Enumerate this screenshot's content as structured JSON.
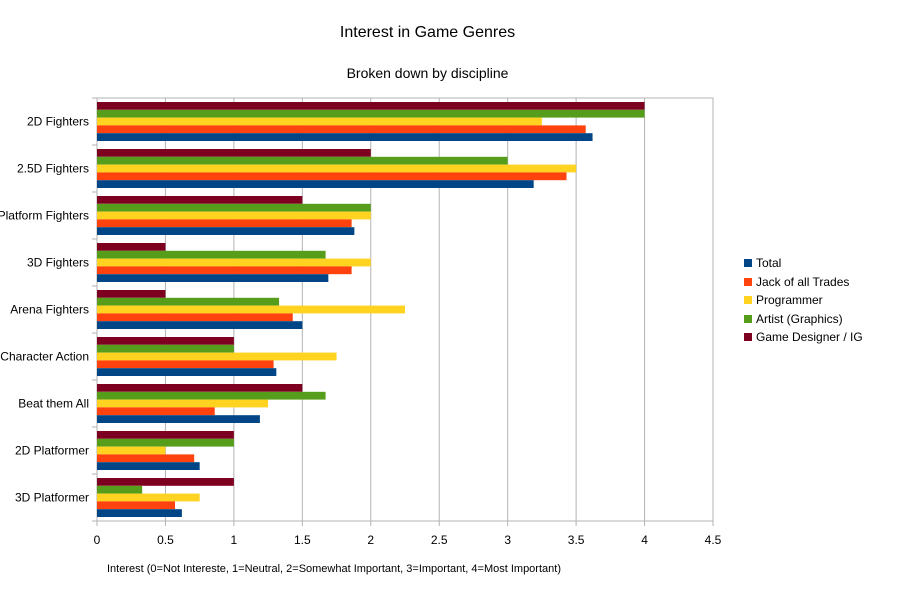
{
  "chart_data": {
    "type": "bar",
    "orientation": "horizontal",
    "title": "Interest in Game Genres",
    "subtitle": "Broken down by discipline",
    "xlabel": "Interest (0=Not Intereste, 1=Neutral, 2=Somewhat Important, 3=Important, 4=Most Important)",
    "ylabel": "",
    "xlim": [
      0,
      4.5
    ],
    "xticks": [
      "0",
      "0.5",
      "1",
      "1.5",
      "2",
      "2.5",
      "3",
      "3.5",
      "4",
      "4.5"
    ],
    "grid": true,
    "legend_position": "right",
    "categories": [
      "2D Fighters",
      "2.5D Fighters",
      "Platform Fighters",
      "3D Fighters",
      "Arena Fighters",
      "Character Action",
      "Beat them All",
      "2D Platformer",
      "3D Platformer"
    ],
    "series": [
      {
        "name": "Game Designer / IG",
        "color": "#7e0021",
        "values": [
          4,
          2,
          1.5,
          0.5,
          0.5,
          1,
          1.5,
          1,
          1
        ]
      },
      {
        "name": "Artist (Graphics)",
        "color": "#579d1c",
        "values": [
          4,
          3,
          2,
          1.67,
          1.33,
          1,
          1.67,
          1,
          0.33
        ]
      },
      {
        "name": "Programmer",
        "color": "#ffd320",
        "values": [
          3.25,
          3.5,
          2,
          2,
          2.25,
          1.75,
          1.25,
          0.5,
          0.75
        ]
      },
      {
        "name": "Jack of all Trades",
        "color": "#ff420e",
        "values": [
          3.57,
          3.43,
          1.86,
          1.86,
          1.43,
          1.29,
          0.86,
          0.71,
          0.57
        ]
      },
      {
        "name": "Total",
        "color": "#004586",
        "values": [
          3.62,
          3.19,
          1.88,
          1.69,
          1.5,
          1.31,
          1.19,
          0.75,
          0.62
        ]
      }
    ],
    "legend_order": [
      "Total",
      "Jack of all Trades",
      "Programmer",
      "Artist (Graphics)",
      "Game Designer / IG"
    ]
  }
}
